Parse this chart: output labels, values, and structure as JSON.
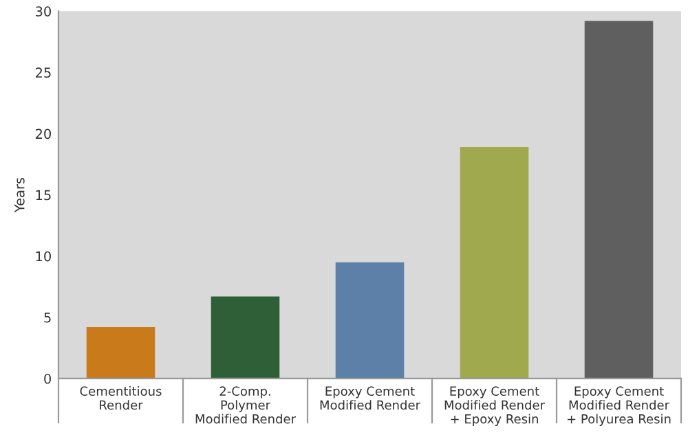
{
  "chart_data": {
    "type": "bar",
    "ylabel": "Years",
    "categories": [
      "Cementitious\nRender",
      "2-Comp.\nPolymer\nModified Render",
      "Epoxy Cement\nModified Render",
      "Epoxy Cement\nModified Render\n+ Epoxy Resin",
      "Epoxy Cement\nModified Render\n+ Polyurea Resin"
    ],
    "values": [
      4.2,
      6.7,
      9.5,
      18.9,
      29.2
    ],
    "colors": [
      "#c97a1b",
      "#2f5f36",
      "#5c80a8",
      "#a1a94f",
      "#5f5f5f"
    ],
    "ylim": [
      0,
      30
    ],
    "yticks": [
      0,
      5,
      10,
      15,
      20,
      25,
      30
    ],
    "grid": false
  }
}
